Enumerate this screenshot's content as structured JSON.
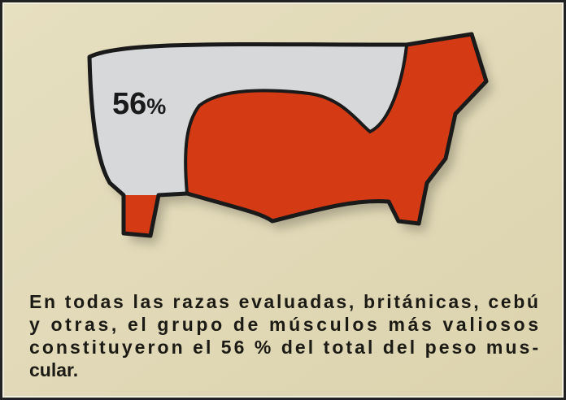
{
  "label": {
    "number": "56",
    "unit": "%"
  },
  "caption": {
    "lines": [
      "En todas las razas evaluadas, británicas, cebú",
      "y otras, el grupo de músculos más valiosos",
      "constituyeron el 56 % del total del peso mus-",
      "cular."
    ]
  }
}
